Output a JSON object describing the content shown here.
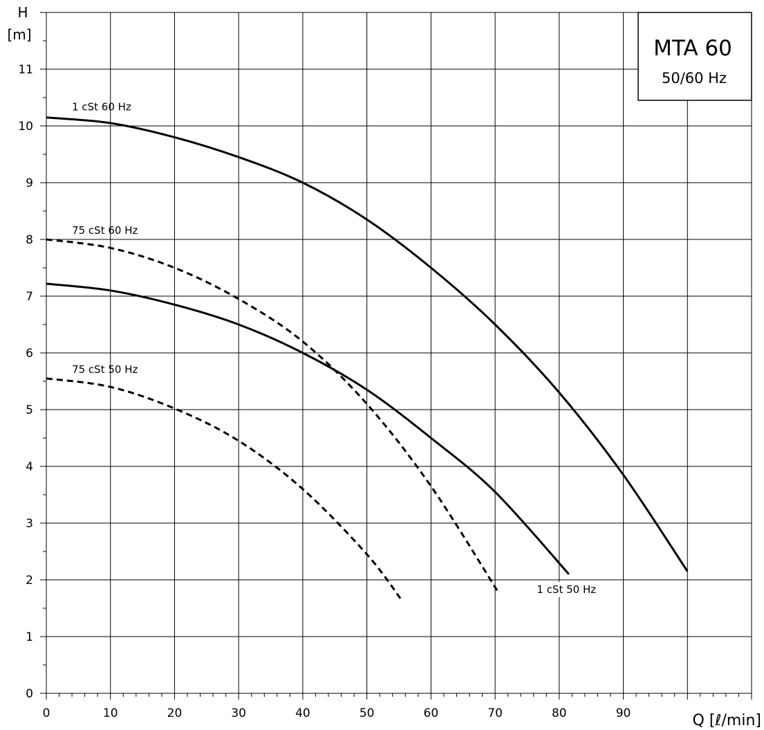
{
  "chart_data": {
    "type": "line",
    "title": "MTA 60",
    "subtitle": "50/60 Hz",
    "xlabel": "Q [ℓ/min]",
    "ylabel_top": "H",
    "ylabel_unit": "[m]",
    "xlim": [
      0,
      110
    ],
    "ylim": [
      0,
      12
    ],
    "x_ticks": [
      0,
      10,
      20,
      30,
      40,
      50,
      60,
      70,
      80,
      90
    ],
    "y_ticks": [
      0,
      1,
      2,
      3,
      4,
      5,
      6,
      7,
      8,
      9,
      10,
      11
    ],
    "grid": true,
    "series": [
      {
        "name": "1 cSt 60 Hz",
        "style": "solid",
        "x": [
          0,
          10,
          20,
          30,
          40,
          50,
          60,
          70,
          80,
          90,
          100
        ],
        "y": [
          10.15,
          10.05,
          9.8,
          9.45,
          9.0,
          8.35,
          7.5,
          6.5,
          5.3,
          3.85,
          2.15
        ]
      },
      {
        "name": "1 cSt 50 Hz",
        "style": "solid",
        "x": [
          0,
          10,
          20,
          30,
          40,
          50,
          60,
          70,
          81.5
        ],
        "y": [
          7.22,
          7.1,
          6.85,
          6.5,
          6.0,
          5.35,
          4.5,
          3.55,
          2.1
        ]
      },
      {
        "name": "75 cSt 60 Hz",
        "style": "dashed",
        "x": [
          0,
          10,
          20,
          30,
          40,
          50,
          60,
          70.5
        ],
        "y": [
          8.0,
          7.85,
          7.5,
          6.95,
          6.2,
          5.1,
          3.65,
          1.78
        ]
      },
      {
        "name": "75 cSt 50 Hz",
        "style": "dashed",
        "x": [
          0,
          10,
          20,
          30,
          40,
          50,
          55.5
        ],
        "y": [
          5.55,
          5.4,
          5.02,
          4.45,
          3.6,
          2.45,
          1.63
        ]
      }
    ]
  }
}
